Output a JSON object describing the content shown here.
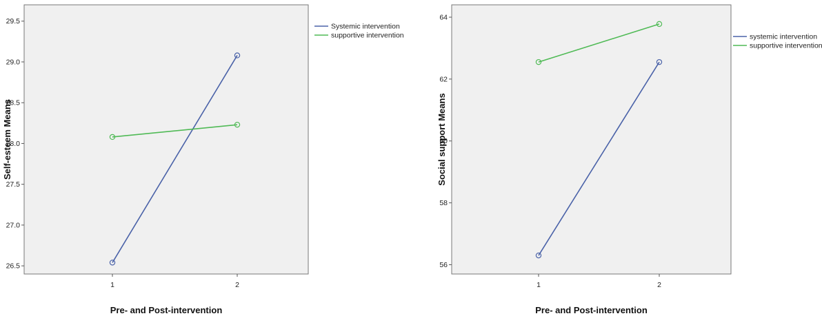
{
  "chart_data": [
    {
      "type": "line",
      "xlabel": "Pre- and Post-intervention",
      "ylabel": "Self-esteem Means",
      "categories": [
        "1",
        "2"
      ],
      "x": [
        1,
        2
      ],
      "ylim": [
        26.4,
        29.7
      ],
      "yticks": [
        "26.5",
        "27.0",
        "27.5",
        "28.0",
        "28.5",
        "29.0",
        "29.5"
      ],
      "ytick_values": [
        26.5,
        27.0,
        27.5,
        28.0,
        28.5,
        29.0,
        29.5
      ],
      "grid": false,
      "legend_position": "right",
      "series": [
        {
          "name": "Systemic intervention",
          "values": [
            26.54,
            29.08
          ],
          "color": "#4a62a8"
        },
        {
          "name": "supportive intervention",
          "values": [
            28.08,
            28.23
          ],
          "color": "#4fba55"
        }
      ]
    },
    {
      "type": "line",
      "xlabel": "Pre- and Post-intervention",
      "ylabel": "Social support Means",
      "categories": [
        "1",
        "2"
      ],
      "x": [
        1,
        2
      ],
      "ylim": [
        55.7,
        64.4
      ],
      "yticks": [
        "56",
        "58",
        "60",
        "62",
        "64"
      ],
      "ytick_values": [
        56,
        58,
        60,
        62,
        64
      ],
      "grid": false,
      "legend_position": "right",
      "series": [
        {
          "name": "systemic intervention",
          "values": [
            56.3,
            62.55
          ],
          "color": "#4a62a8"
        },
        {
          "name": "supportive intervention",
          "values": [
            62.55,
            63.78
          ],
          "color": "#4fba55"
        }
      ]
    }
  ]
}
